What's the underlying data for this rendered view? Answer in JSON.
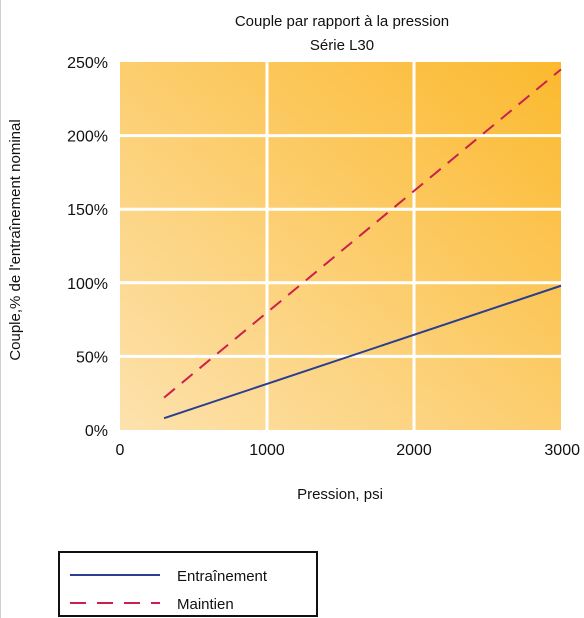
{
  "chart_data": {
    "type": "line",
    "title": "Couple par rapport à la pression",
    "subtitle": "Série L30",
    "xlabel": "Pression, psi",
    "ylabel": "Couple,% de l'entraînement nominal",
    "xlim": [
      0,
      3000
    ],
    "ylim": [
      0,
      2.5
    ],
    "x_ticks": [
      0,
      1000,
      2000,
      3000
    ],
    "x_tick_labels": [
      "0",
      "1000",
      "2000",
      "3000"
    ],
    "y_ticks": [
      0,
      0.5,
      1.0,
      1.5,
      2.0,
      2.5
    ],
    "y_tick_labels": [
      "0%",
      "50%",
      "100%",
      "150%",
      "200%",
      "250%"
    ],
    "grid": true,
    "legend_position": "bottom-left",
    "background_gradient": [
      "#fde2ae",
      "#fbb92e"
    ],
    "grid_color": "#ffffff",
    "series": [
      {
        "name": "Entraînement",
        "style": "solid",
        "color": "#2b3f8e",
        "x": [
          300,
          3000
        ],
        "y": [
          0.08,
          0.98
        ]
      },
      {
        "name": "Maintien",
        "style": "dashed",
        "color": "#cc1f4d",
        "x": [
          300,
          3000
        ],
        "y": [
          0.22,
          2.45
        ]
      }
    ]
  }
}
